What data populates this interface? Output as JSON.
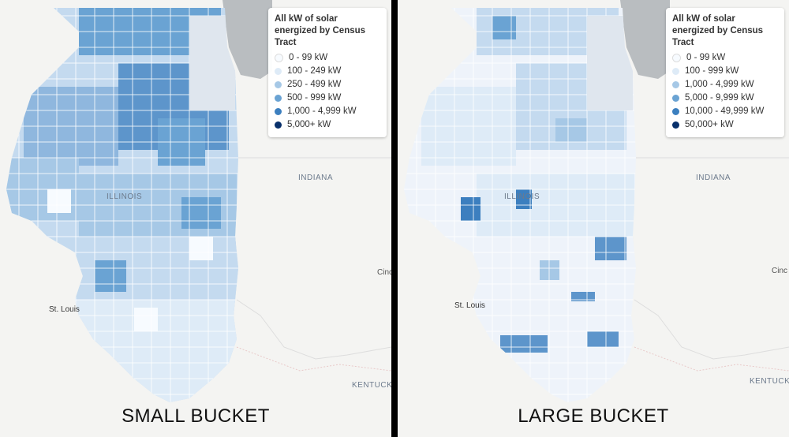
{
  "panels": [
    {
      "caption": "SMALL BUCKET",
      "legend": {
        "title": "All kW of solar energized by Census Tract",
        "items": [
          {
            "label": "0 - 99 kW",
            "color": "#f7fbff"
          },
          {
            "label": "100 - 249 kW",
            "color": "#deebf7"
          },
          {
            "label": "250 - 499 kW",
            "color": "#a6c8e6"
          },
          {
            "label": "500 - 999 kW",
            "color": "#6aa3d3"
          },
          {
            "label": "1,000 - 4,999 kW",
            "color": "#3c7fbf"
          },
          {
            "label": "5,000+ kW",
            "color": "#08306b"
          }
        ]
      },
      "places": {
        "state_il": "ILLINOIS",
        "state_in": "INDIANA",
        "state_ky": "KENTUCK",
        "city_stl": "St. Louis",
        "city_cin": "Cinc"
      }
    },
    {
      "caption": "LARGE BUCKET",
      "legend": {
        "title": "All kW of solar energized by Census Tract",
        "items": [
          {
            "label": "0 - 99 kW",
            "color": "#f7fbff"
          },
          {
            "label": "100 - 999 kW",
            "color": "#deebf7"
          },
          {
            "label": "1,000 - 4,999 kW",
            "color": "#a6c8e6"
          },
          {
            "label": "5,000 - 9,999 kW",
            "color": "#6aa3d3"
          },
          {
            "label": "10,000 - 49,999 kW",
            "color": "#3c7fbf"
          },
          {
            "label": "50,000+ kW",
            "color": "#08306b"
          }
        ]
      },
      "places": {
        "state_il": "ILLINOIS",
        "state_in": "INDIANA",
        "state_ky": "KENTUCK",
        "city_stl": "St. Louis",
        "city_cin": "Cinc"
      }
    }
  ]
}
